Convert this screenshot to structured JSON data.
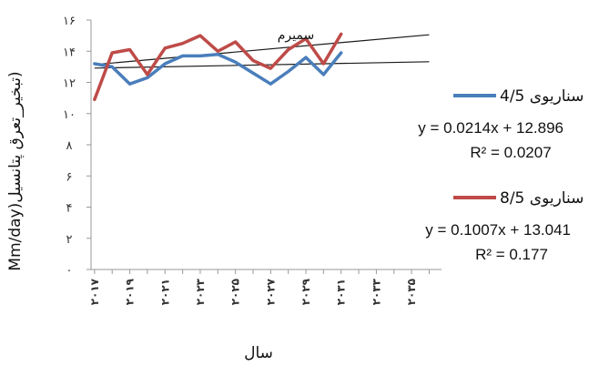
{
  "chart_data": {
    "type": "line",
    "title": "سمیرم",
    "xlabel": "سال",
    "ylabel": "Mm/day)تبخیر_تعرق پتانسیل)",
    "ylim": [
      0,
      16
    ],
    "yticks": [
      0,
      2,
      4,
      6,
      8,
      10,
      12,
      14,
      16
    ],
    "ytick_labels": [
      "۰",
      "۲",
      "۴",
      "۶",
      "۸",
      "۱۰",
      "۱۲",
      "۱۴",
      "۱۶"
    ],
    "x_year_range": [
      2017,
      2036
    ],
    "xtick_labels": [
      "۲۰۱۷",
      "۲۰۱۹",
      "۲۰۲۱",
      "۲۰۲۳",
      "۲۰۲۵",
      "۲۰۲۷",
      "۲۰۲۹",
      "۲۰۳۱",
      "۲۰۳۳",
      "۲۰۳۵"
    ],
    "xtick_years": [
      2017,
      2019,
      2021,
      2023,
      2025,
      2027,
      2029,
      2031,
      2033,
      2035
    ],
    "grid": false,
    "legend_position": "right",
    "series": [
      {
        "name": "سناریوی 4/5",
        "color": "#4a7ebb",
        "x": [
          2017,
          2018,
          2019,
          2020,
          2021,
          2022,
          2023,
          2024,
          2025,
          2026,
          2027,
          2028,
          2029,
          2030,
          2031
        ],
        "values": [
          13.2,
          13.0,
          11.9,
          12.3,
          13.2,
          13.7,
          13.7,
          13.8,
          13.3,
          12.6,
          11.9,
          12.7,
          13.6,
          12.5,
          13.9
        ],
        "trend": {
          "slope": 0.0214,
          "intercept": 12.896,
          "from": 2017,
          "to": 2036
        },
        "equation": "y = 0.0214x + 12.896",
        "r2": "R² = 0.0207"
      },
      {
        "name": "سناریوی 8/5",
        "color": "#be4b48",
        "x": [
          2017,
          2018,
          2019,
          2020,
          2021,
          2022,
          2023,
          2024,
          2025,
          2026,
          2027,
          2028,
          2029,
          2030,
          2031
        ],
        "values": [
          10.9,
          13.9,
          14.1,
          12.5,
          14.2,
          14.5,
          15.0,
          14.0,
          14.6,
          13.4,
          12.9,
          14.1,
          14.8,
          13.2,
          15.1
        ],
        "trend": {
          "slope": 0.1007,
          "intercept": 13.041,
          "from": 2017,
          "to": 2036
        },
        "equation": "y = 0.1007x + 13.041",
        "r2": "R² = 0.177"
      }
    ]
  }
}
